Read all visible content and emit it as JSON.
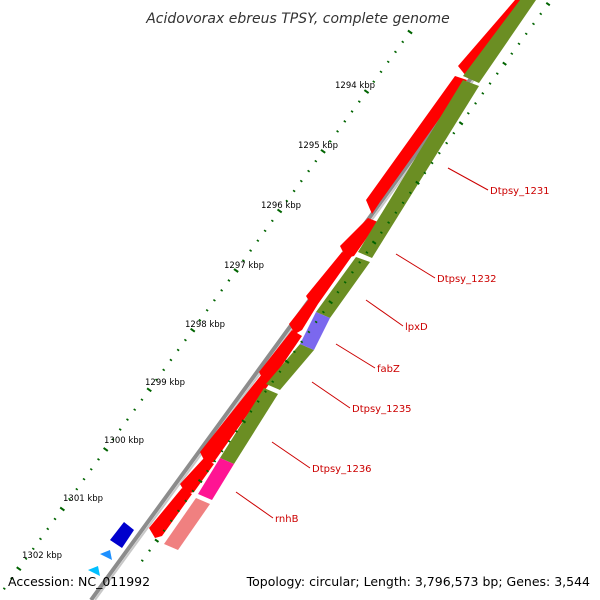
{
  "title": "Acidovorax ebreus TPSY, complete genome",
  "footer": {
    "accession": "Accession: NC_011992",
    "summary": "Topology: circular; Length: 3,796,573 bp; Genes: 3,544"
  },
  "colors": {
    "backbone": "#9a9a9a",
    "forward_gene": "#ff0000",
    "reverse_gene": "#ff0000",
    "gene_track": "#6b8e23",
    "tick": "#006400",
    "label": "#cc0000",
    "lpxD": "#7b68ee",
    "rnhB": "#ff1493",
    "pale": "#f08080"
  },
  "kbp_labels": [
    "1294 kbp",
    "1295 kbp",
    "1296 kbp",
    "1297 kbp",
    "1298 kbp",
    "1299 kbp",
    "1300 kbp",
    "1301 kbp",
    "1302 kbp"
  ],
  "genes": [
    {
      "name": "Dtpsy_1231"
    },
    {
      "name": "Dtpsy_1232"
    },
    {
      "name": "lpxD"
    },
    {
      "name": "fabZ"
    },
    {
      "name": "Dtpsy_1235"
    },
    {
      "name": "Dtpsy_1236"
    },
    {
      "name": "rnhB"
    }
  ]
}
